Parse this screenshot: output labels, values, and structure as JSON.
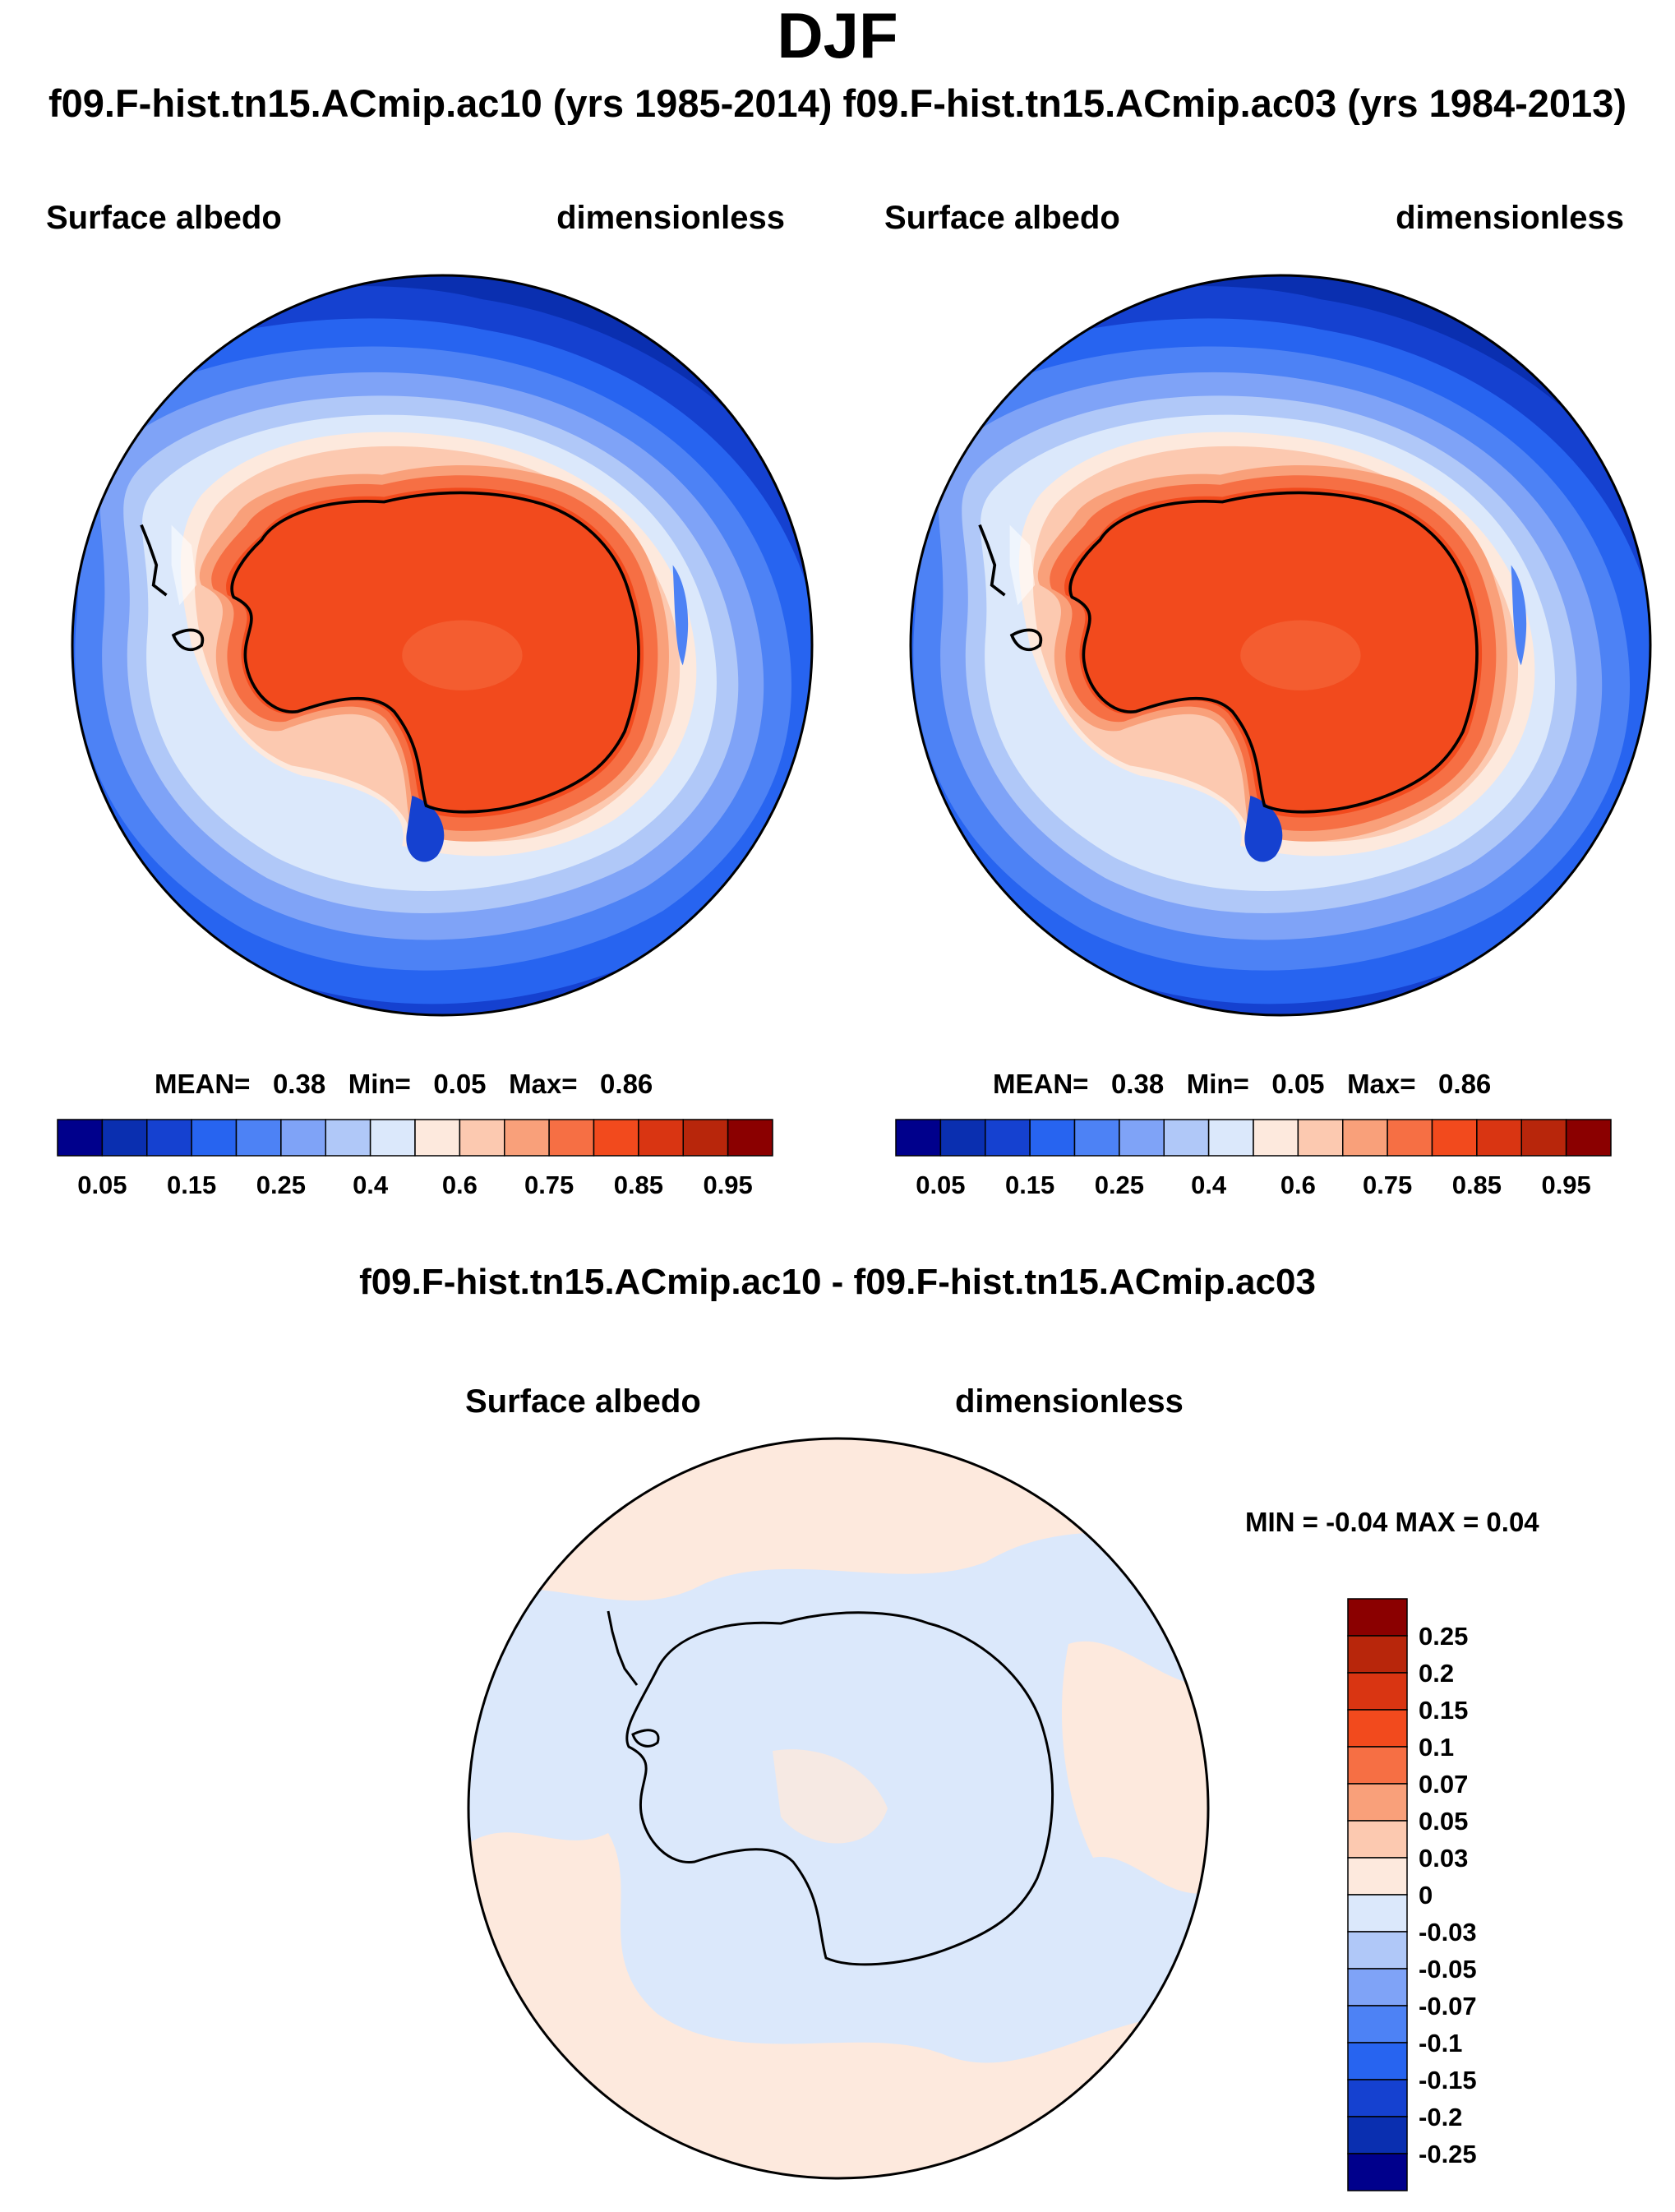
{
  "title": "DJF",
  "comparison_title": "f09.F-hist.tn15.ACmip.ac10 (yrs 1985-2014) f09.F-hist.tn15.ACmip.ac03 (yrs 1984-2013)",
  "panels": [
    {
      "variable": "Surface albedo",
      "units": "dimensionless",
      "stats": {
        "mean": "0.38",
        "min": "0.05",
        "max": "0.86"
      }
    },
    {
      "variable": "Surface albedo",
      "units": "dimensionless",
      "stats": {
        "mean": "0.38",
        "min": "0.05",
        "max": "0.86"
      }
    }
  ],
  "stat_labels": {
    "mean": "MEAN=",
    "min": "Min=",
    "max": "Max="
  },
  "main_colorbar": {
    "colors": [
      "#00008c",
      "#0a2fb0",
      "#1541d0",
      "#2764f0",
      "#4d82f5",
      "#7fa3f7",
      "#b0c8f8",
      "#dbe8fb",
      "#fde9dd",
      "#fcc9b0",
      "#f9a07a",
      "#f66f44",
      "#f24a1d",
      "#d93512",
      "#b8260b",
      "#8b0000"
    ],
    "labels": [
      "0.05",
      "0.15",
      "0.25",
      "0.4",
      "0.6",
      "0.75",
      "0.85",
      "0.95"
    ]
  },
  "diff": {
    "title": "f09.F-hist.tn15.ACmip.ac10 - f09.F-hist.tn15.ACmip.ac03",
    "variable": "Surface albedo",
    "units": "dimensionless",
    "min_max_text": "MIN = -0.04 MAX = 0.04",
    "colorbar_colors": [
      "#8b0000",
      "#b8260b",
      "#d93512",
      "#f24a1d",
      "#f66f44",
      "#f9a07a",
      "#fcc9b0",
      "#fde9dd",
      "#dbe8fb",
      "#b0c8f8",
      "#7fa3f7",
      "#4d82f5",
      "#2764f0",
      "#1541d0",
      "#0a2fb0",
      "#00008c"
    ],
    "colorbar_labels": [
      "0.25",
      "0.2",
      "0.15",
      "0.1",
      "0.07",
      "0.05",
      "0.03",
      "0",
      "-0.03",
      "-0.05",
      "-0.07",
      "-0.1",
      "-0.15",
      "-0.2",
      "-0.25"
    ]
  },
  "colors": {
    "ocean": "#0a2fb0",
    "ice_interior": "#f24a1d",
    "diff_positive": "#fde9dd",
    "diff_negative": "#dbe8fb",
    "coastline": "#000000"
  }
}
